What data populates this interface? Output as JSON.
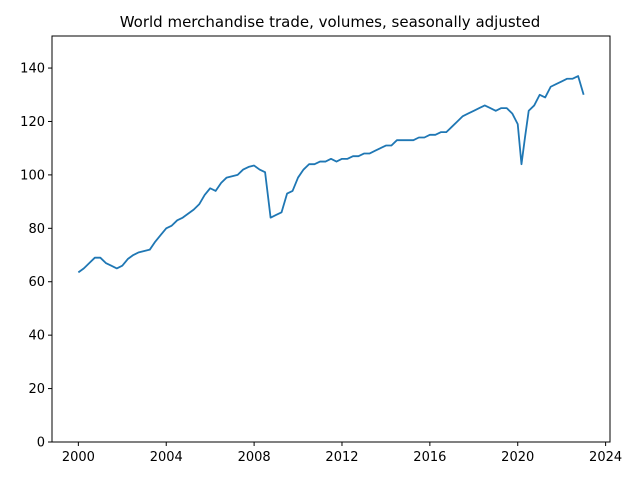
{
  "chart_data": {
    "type": "line",
    "title": "World merchandise trade, volumes, seasonally adjusted",
    "xlabel": "",
    "ylabel": "",
    "xlim": [
      1998.8,
      2024.2
    ],
    "ylim": [
      0,
      152
    ],
    "grid": false,
    "x_ticks": [
      2000,
      2004,
      2008,
      2012,
      2016,
      2020,
      2024
    ],
    "x_tick_labels": [
      "2000",
      "2004",
      "2008",
      "2012",
      "2016",
      "2020",
      "2024"
    ],
    "y_ticks": [
      0,
      20,
      40,
      60,
      80,
      100,
      120,
      140
    ],
    "y_tick_labels": [
      "0",
      "20",
      "40",
      "60",
      "80",
      "100",
      "120",
      "140"
    ],
    "series": [
      {
        "color": "#1f77b4",
        "x": [
          2000.0,
          2000.25,
          2000.5,
          2000.75,
          2001.0,
          2001.25,
          2001.5,
          2001.75,
          2002.0,
          2002.25,
          2002.5,
          2002.75,
          2003.0,
          2003.25,
          2003.5,
          2003.75,
          2004.0,
          2004.25,
          2004.5,
          2004.75,
          2005.0,
          2005.25,
          2005.5,
          2005.75,
          2006.0,
          2006.25,
          2006.5,
          2006.75,
          2007.0,
          2007.25,
          2007.5,
          2007.75,
          2008.0,
          2008.25,
          2008.5,
          2008.75,
          2009.0,
          2009.25,
          2009.5,
          2009.75,
          2010.0,
          2010.25,
          2010.5,
          2010.75,
          2011.0,
          2011.25,
          2011.5,
          2011.75,
          2012.0,
          2012.25,
          2012.5,
          2012.75,
          2013.0,
          2013.25,
          2013.5,
          2013.75,
          2014.0,
          2014.25,
          2014.5,
          2014.75,
          2015.0,
          2015.25,
          2015.5,
          2015.75,
          2016.0,
          2016.25,
          2016.5,
          2016.75,
          2017.0,
          2017.25,
          2017.5,
          2017.75,
          2018.0,
          2018.25,
          2018.5,
          2018.75,
          2019.0,
          2019.25,
          2019.5,
          2019.75,
          2020.0,
          2020.17,
          2020.33,
          2020.5,
          2020.75,
          2021.0,
          2021.25,
          2021.5,
          2021.75,
          2022.0,
          2022.25,
          2022.5,
          2022.75,
          2023.0
        ],
        "y": [
          63.5,
          65,
          67,
          69,
          69,
          67,
          66,
          65,
          66,
          68.5,
          70,
          71,
          71.5,
          72,
          75,
          77.5,
          80,
          81,
          83,
          84,
          85.5,
          87,
          89,
          92.5,
          95,
          94,
          97,
          99,
          99.5,
          100,
          102,
          103,
          103.5,
          102,
          101,
          84,
          85,
          86,
          93,
          94,
          99,
          102,
          104,
          104,
          105,
          105,
          106,
          105,
          106,
          106,
          107,
          107,
          108,
          108,
          109,
          110,
          111,
          111,
          113,
          113,
          113,
          113,
          114,
          114,
          115,
          115,
          116,
          116,
          118,
          120,
          122,
          123,
          124,
          125,
          126,
          125,
          124,
          125,
          125,
          123,
          119,
          104,
          114,
          124,
          126,
          130,
          129,
          133,
          134,
          135,
          136,
          136,
          137,
          130
        ]
      }
    ]
  }
}
